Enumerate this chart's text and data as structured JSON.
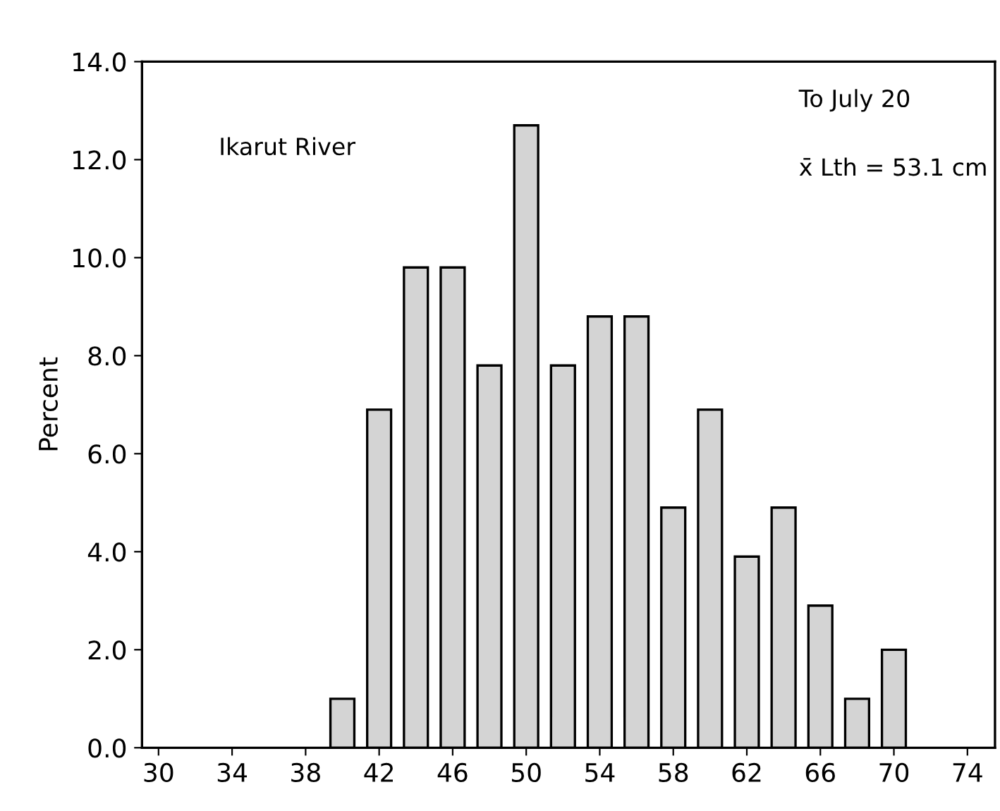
{
  "chart_data": {
    "type": "bar",
    "ylabel": "Percent",
    "x": [
      40,
      42,
      44,
      46,
      48,
      50,
      52,
      54,
      56,
      58,
      60,
      62,
      64,
      66,
      68,
      70
    ],
    "values": [
      1.0,
      6.9,
      9.8,
      9.8,
      7.8,
      12.7,
      7.8,
      8.8,
      8.8,
      4.9,
      6.9,
      3.9,
      4.9,
      2.9,
      1.0,
      2.0
    ],
    "color": "#d4d4d4",
    "xlim": [
      29.1,
      75.5
    ],
    "xticks": [
      30,
      34,
      38,
      42,
      46,
      50,
      54,
      58,
      62,
      66,
      70,
      74
    ],
    "ylim": [
      0,
      14
    ],
    "yticks": [
      {
        "value": 0,
        "label": "0.0"
      },
      {
        "value": 2,
        "label": "2.0"
      },
      {
        "value": 4,
        "label": "4.0"
      },
      {
        "value": 6,
        "label": "6.0"
      },
      {
        "value": 8,
        "label": "8.0"
      },
      {
        "value": 10,
        "label": "10.0"
      },
      {
        "value": 12,
        "label": "12.0"
      },
      {
        "value": 14,
        "label": "14.0"
      }
    ],
    "grid": false,
    "annotations": [
      "Ikarut River",
      "To July 20",
      "x̄ Lth = 53.1 cm"
    ]
  }
}
